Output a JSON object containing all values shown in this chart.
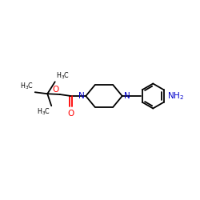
{
  "background_color": "#ffffff",
  "bond_color": "#000000",
  "nitrogen_color": "#0000cc",
  "oxygen_color": "#ff0000",
  "figsize": [
    2.5,
    2.5
  ],
  "dpi": 100,
  "xlim": [
    0,
    10
  ],
  "ylim": [
    0,
    10
  ]
}
